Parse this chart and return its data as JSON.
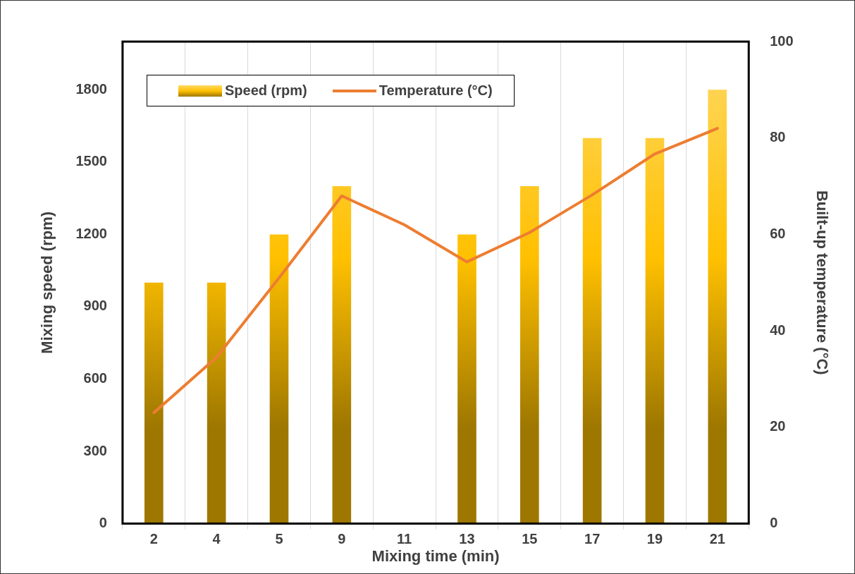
{
  "chart_data": {
    "type": "bar",
    "xlabel": "Mixing time (min)",
    "ylabel": "Mixing speed (rpm)",
    "y2label": "Built-up temperature (°C)",
    "categories": [
      "2",
      "4",
      "5",
      "9",
      "11",
      "13",
      "15",
      "17",
      "19",
      "21"
    ],
    "series": [
      {
        "name": "Speed (rpm)",
        "color": "#ffc000",
        "values": [
          1000,
          1000,
          1200,
          1400,
          null,
          1200,
          1400,
          1600,
          1600,
          1800
        ]
      },
      {
        "name": "Temperature (°C)",
        "type": "line",
        "axis": "y2",
        "color": "#ed7d31",
        "values": [
          23,
          34.5,
          51,
          68,
          62,
          54.3,
          60.4,
          68.2,
          76.7,
          82
        ]
      }
    ],
    "ylim": [
      0,
      2000
    ],
    "yticks": [
      0,
      300,
      600,
      900,
      1200,
      1500,
      1800
    ],
    "y2lim": [
      0,
      100
    ],
    "y2ticks": [
      0,
      20,
      40,
      60,
      80,
      100
    ],
    "grid": "x",
    "legend": "top left",
    "marker": "none",
    "line_style": "solid"
  }
}
